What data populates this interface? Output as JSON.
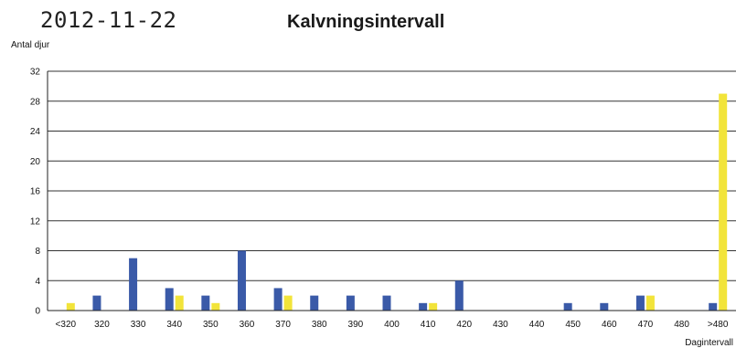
{
  "header": {
    "date": "2012-11-22",
    "title": "Kalvningsintervall"
  },
  "chart_data": {
    "type": "bar",
    "title": "Kalvningsintervall",
    "ylabel": "Antal djur",
    "xlabel": "Dagintervall",
    "ylim": [
      0,
      32
    ],
    "yticks": [
      0,
      4,
      8,
      12,
      16,
      20,
      24,
      28,
      32
    ],
    "grid": true,
    "categories": [
      "<320",
      "320",
      "330",
      "340",
      "350",
      "360",
      "370",
      "380",
      "390",
      "400",
      "410",
      "420",
      "430",
      "440",
      "450",
      "460",
      "470",
      "480",
      ">480"
    ],
    "series": [
      {
        "color": "#3a5aa8",
        "values": [
          0,
          2,
          7,
          3,
          2,
          8,
          3,
          2,
          2,
          2,
          1,
          4,
          0,
          0,
          1,
          1,
          2,
          0,
          1
        ]
      },
      {
        "color": "#f2e43a",
        "values": [
          1,
          0,
          0,
          2,
          1,
          0,
          2,
          0,
          0,
          0,
          1,
          0,
          0,
          0,
          0,
          0,
          2,
          0,
          29
        ]
      }
    ]
  }
}
